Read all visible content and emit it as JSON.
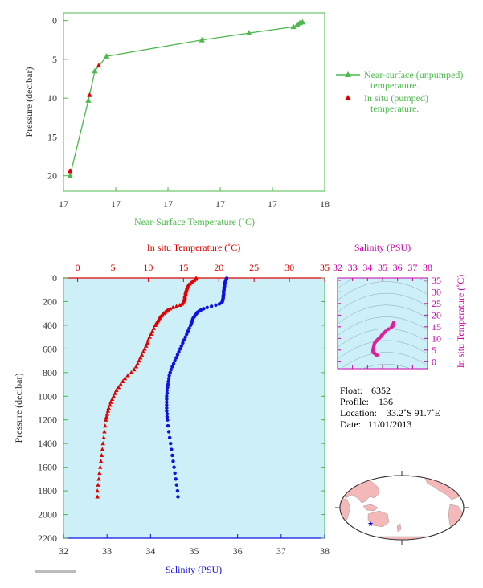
{
  "colors": {
    "green": "#4db84d",
    "red": "#e00000",
    "blue": "#1010e0",
    "magenta": "#cc00aa",
    "plot_bg": "#cdeff7",
    "axis_text": "#333333"
  },
  "chart_data": [
    {
      "id": "near-surface",
      "type": "scatter",
      "xlabel": "Near-Surface Temperature (˚C)",
      "ylabel": "Pressure (decibar)",
      "xlim": [
        17,
        18
      ],
      "ylim": [
        22,
        -1
      ],
      "xticks": [
        17,
        17.2,
        17.4,
        17.6,
        17.8,
        18
      ],
      "xtick_labels": [
        "17",
        "17",
        "17",
        "17",
        "17",
        "18"
      ],
      "yticks": [
        0,
        5,
        10,
        15,
        20
      ],
      "series": [
        {
          "name": "Near-surface (unpumped) temperature.",
          "name_lines": [
            "Near-surface (unpumped)",
            "temperature."
          ],
          "marker": "triangle",
          "line": true,
          "color": "#4db84d",
          "points": [
            [
              17.915,
              0.2
            ],
            [
              17.905,
              0.3
            ],
            [
              17.895,
              0.5
            ],
            [
              17.88,
              0.8
            ],
            [
              17.71,
              1.6
            ],
            [
              17.53,
              2.5
            ],
            [
              17.165,
              4.6
            ],
            [
              17.12,
              6.5
            ],
            [
              17.095,
              10.3
            ],
            [
              17.025,
              20.0
            ]
          ]
        },
        {
          "name": "In situ (pumped) temperature.",
          "name_lines": [
            "In situ (pumped)",
            "temperature."
          ],
          "marker": "triangle",
          "line": false,
          "color": "#e00000",
          "points": [
            [
              17.135,
              5.8
            ],
            [
              17.1,
              9.6
            ],
            [
              17.025,
              19.4
            ]
          ]
        }
      ]
    },
    {
      "id": "profile",
      "type": "scatter",
      "xlabel_top": "In situ Temperature (˚C)",
      "xlabel_bottom": "Salinity (PSU)",
      "ylabel": "Pressure (decibar)",
      "temp_lim": [
        -2,
        35
      ],
      "sal_lim": [
        32,
        38
      ],
      "ylim": [
        2200,
        0
      ],
      "temp_ticks": [
        0,
        5,
        10,
        15,
        20,
        25,
        30,
        35
      ],
      "sal_ticks": [
        32,
        33,
        34,
        35,
        36,
        37,
        38
      ],
      "yticks": [
        0,
        200,
        400,
        600,
        800,
        1000,
        1200,
        1400,
        1600,
        1800,
        2000,
        2200
      ],
      "temperature_profile": [
        [
          16.8,
          2
        ],
        [
          16.7,
          10
        ],
        [
          16.5,
          20
        ],
        [
          16.3,
          30
        ],
        [
          16.1,
          40
        ],
        [
          15.9,
          50
        ],
        [
          15.7,
          60
        ],
        [
          15.6,
          70
        ],
        [
          15.5,
          80
        ],
        [
          15.5,
          90
        ],
        [
          15.4,
          100
        ],
        [
          15.4,
          110
        ],
        [
          15.3,
          120
        ],
        [
          15.3,
          130
        ],
        [
          15.3,
          140
        ],
        [
          15.2,
          150
        ],
        [
          15.2,
          160
        ],
        [
          15.2,
          170
        ],
        [
          15.1,
          180
        ],
        [
          15.1,
          190
        ],
        [
          15.0,
          200
        ],
        [
          14.9,
          210
        ],
        [
          14.8,
          220
        ],
        [
          14.5,
          230
        ],
        [
          14.0,
          240
        ],
        [
          13.5,
          250
        ],
        [
          13.1,
          260
        ],
        [
          12.8,
          270
        ],
        [
          12.6,
          280
        ],
        [
          12.4,
          290
        ],
        [
          12.2,
          300
        ],
        [
          12.0,
          310
        ],
        [
          11.9,
          320
        ],
        [
          11.7,
          330
        ],
        [
          11.6,
          340
        ],
        [
          11.5,
          350
        ],
        [
          11.4,
          360
        ],
        [
          11.3,
          370
        ],
        [
          11.2,
          380
        ],
        [
          11.1,
          390
        ],
        [
          11.0,
          400
        ],
        [
          10.8,
          425
        ],
        [
          10.6,
          450
        ],
        [
          10.4,
          475
        ],
        [
          10.2,
          500
        ],
        [
          10.0,
          525
        ],
        [
          9.9,
          550
        ],
        [
          9.7,
          575
        ],
        [
          9.5,
          600
        ],
        [
          9.3,
          625
        ],
        [
          9.1,
          650
        ],
        [
          8.9,
          675
        ],
        [
          8.7,
          700
        ],
        [
          8.5,
          725
        ],
        [
          8.3,
          750
        ],
        [
          8.0,
          775
        ],
        [
          7.6,
          800
        ],
        [
          7.1,
          825
        ],
        [
          6.7,
          850
        ],
        [
          6.4,
          875
        ],
        [
          6.1,
          900
        ],
        [
          5.8,
          925
        ],
        [
          5.5,
          950
        ],
        [
          5.3,
          975
        ],
        [
          5.1,
          1000
        ],
        [
          4.9,
          1025
        ],
        [
          4.7,
          1050
        ],
        [
          4.6,
          1075
        ],
        [
          4.4,
          1100
        ],
        [
          4.3,
          1125
        ],
        [
          4.2,
          1150
        ],
        [
          4.1,
          1175
        ],
        [
          4.0,
          1200
        ],
        [
          3.9,
          1250
        ],
        [
          3.8,
          1300
        ],
        [
          3.7,
          1350
        ],
        [
          3.6,
          1400
        ],
        [
          3.5,
          1450
        ],
        [
          3.4,
          1500
        ],
        [
          3.3,
          1550
        ],
        [
          3.2,
          1600
        ],
        [
          3.1,
          1650
        ],
        [
          3.0,
          1700
        ],
        [
          2.9,
          1750
        ],
        [
          2.8,
          1800
        ],
        [
          2.8,
          1850
        ]
      ],
      "salinity_profile": [
        [
          35.75,
          2
        ],
        [
          35.74,
          10
        ],
        [
          35.73,
          20
        ],
        [
          35.72,
          30
        ],
        [
          35.71,
          40
        ],
        [
          35.7,
          50
        ],
        [
          35.7,
          60
        ],
        [
          35.7,
          70
        ],
        [
          35.69,
          80
        ],
        [
          35.69,
          90
        ],
        [
          35.69,
          100
        ],
        [
          35.68,
          110
        ],
        [
          35.68,
          120
        ],
        [
          35.68,
          130
        ],
        [
          35.68,
          140
        ],
        [
          35.67,
          150
        ],
        [
          35.67,
          160
        ],
        [
          35.67,
          170
        ],
        [
          35.66,
          180
        ],
        [
          35.66,
          190
        ],
        [
          35.65,
          200
        ],
        [
          35.63,
          210
        ],
        [
          35.58,
          220
        ],
        [
          35.5,
          230
        ],
        [
          35.4,
          240
        ],
        [
          35.3,
          250
        ],
        [
          35.22,
          260
        ],
        [
          35.16,
          270
        ],
        [
          35.12,
          280
        ],
        [
          35.08,
          290
        ],
        [
          35.06,
          300
        ],
        [
          35.04,
          310
        ],
        [
          35.02,
          320
        ],
        [
          35.0,
          330
        ],
        [
          34.98,
          340
        ],
        [
          34.97,
          350
        ],
        [
          34.96,
          360
        ],
        [
          34.95,
          370
        ],
        [
          34.94,
          380
        ],
        [
          34.93,
          390
        ],
        [
          34.92,
          400
        ],
        [
          34.89,
          425
        ],
        [
          34.86,
          450
        ],
        [
          34.83,
          475
        ],
        [
          34.8,
          500
        ],
        [
          34.77,
          525
        ],
        [
          34.74,
          550
        ],
        [
          34.71,
          575
        ],
        [
          34.68,
          600
        ],
        [
          34.65,
          625
        ],
        [
          34.62,
          650
        ],
        [
          34.59,
          675
        ],
        [
          34.56,
          700
        ],
        [
          34.53,
          725
        ],
        [
          34.5,
          750
        ],
        [
          34.47,
          775
        ],
        [
          34.45,
          800
        ],
        [
          34.43,
          825
        ],
        [
          34.42,
          850
        ],
        [
          34.41,
          875
        ],
        [
          34.4,
          900
        ],
        [
          34.39,
          925
        ],
        [
          34.38,
          950
        ],
        [
          34.38,
          975
        ],
        [
          34.37,
          1000
        ],
        [
          34.37,
          1025
        ],
        [
          34.37,
          1050
        ],
        [
          34.37,
          1075
        ],
        [
          34.37,
          1100
        ],
        [
          34.37,
          1125
        ],
        [
          34.38,
          1150
        ],
        [
          34.38,
          1175
        ],
        [
          34.39,
          1200
        ],
        [
          34.4,
          1250
        ],
        [
          34.42,
          1300
        ],
        [
          34.44,
          1350
        ],
        [
          34.46,
          1400
        ],
        [
          34.48,
          1450
        ],
        [
          34.5,
          1500
        ],
        [
          34.52,
          1550
        ],
        [
          34.54,
          1600
        ],
        [
          34.56,
          1650
        ],
        [
          34.58,
          1700
        ],
        [
          34.6,
          1750
        ],
        [
          34.62,
          1800
        ],
        [
          34.63,
          1850
        ]
      ]
    },
    {
      "id": "ts-diagram",
      "type": "scatter",
      "xlabel_top": "Salinity (PSU)",
      "ylabel": "In situ Temperature (˚C)",
      "xlim": [
        32,
        38
      ],
      "ylim": [
        -3,
        36
      ],
      "xticks": [
        32,
        33,
        34,
        35,
        36,
        37,
        38
      ],
      "yticks": [
        0,
        5,
        10,
        15,
        20,
        25,
        30,
        35
      ],
      "points": [
        [
          35.75,
          16.8
        ],
        [
          35.72,
          16.3
        ],
        [
          35.7,
          15.9
        ],
        [
          35.69,
          15.5
        ],
        [
          35.68,
          15.3
        ],
        [
          35.66,
          15.1
        ],
        [
          35.58,
          14.8
        ],
        [
          35.4,
          14.0
        ],
        [
          35.22,
          13.1
        ],
        [
          35.12,
          12.6
        ],
        [
          35.06,
          12.2
        ],
        [
          35.02,
          11.9
        ],
        [
          34.98,
          11.6
        ],
        [
          34.95,
          11.3
        ],
        [
          34.92,
          11.0
        ],
        [
          34.86,
          10.6
        ],
        [
          34.8,
          10.2
        ],
        [
          34.74,
          9.9
        ],
        [
          34.68,
          9.5
        ],
        [
          34.62,
          9.1
        ],
        [
          34.56,
          8.7
        ],
        [
          34.5,
          8.3
        ],
        [
          34.45,
          7.6
        ],
        [
          34.42,
          6.7
        ],
        [
          34.4,
          6.1
        ],
        [
          34.38,
          5.5
        ],
        [
          34.37,
          5.1
        ],
        [
          34.37,
          4.7
        ],
        [
          34.37,
          4.4
        ],
        [
          34.38,
          4.2
        ],
        [
          34.39,
          4.0
        ],
        [
          34.42,
          3.8
        ],
        [
          34.46,
          3.6
        ],
        [
          34.5,
          3.4
        ],
        [
          34.54,
          3.2
        ],
        [
          34.58,
          3.0
        ],
        [
          34.62,
          2.8
        ],
        [
          34.63,
          2.8
        ]
      ]
    }
  ],
  "info": {
    "float_label": "Float:",
    "float_value": "6352",
    "profile_label": "Profile:",
    "profile_value": "136",
    "location_label": "Location:",
    "location_value": "33.2˚S  91.7˚E",
    "date_label": "Date:",
    "date_value": "11/01/2013"
  },
  "map": {
    "marker_icon": "star-icon",
    "marker_lon": 91.7,
    "marker_lat": -33.2
  }
}
